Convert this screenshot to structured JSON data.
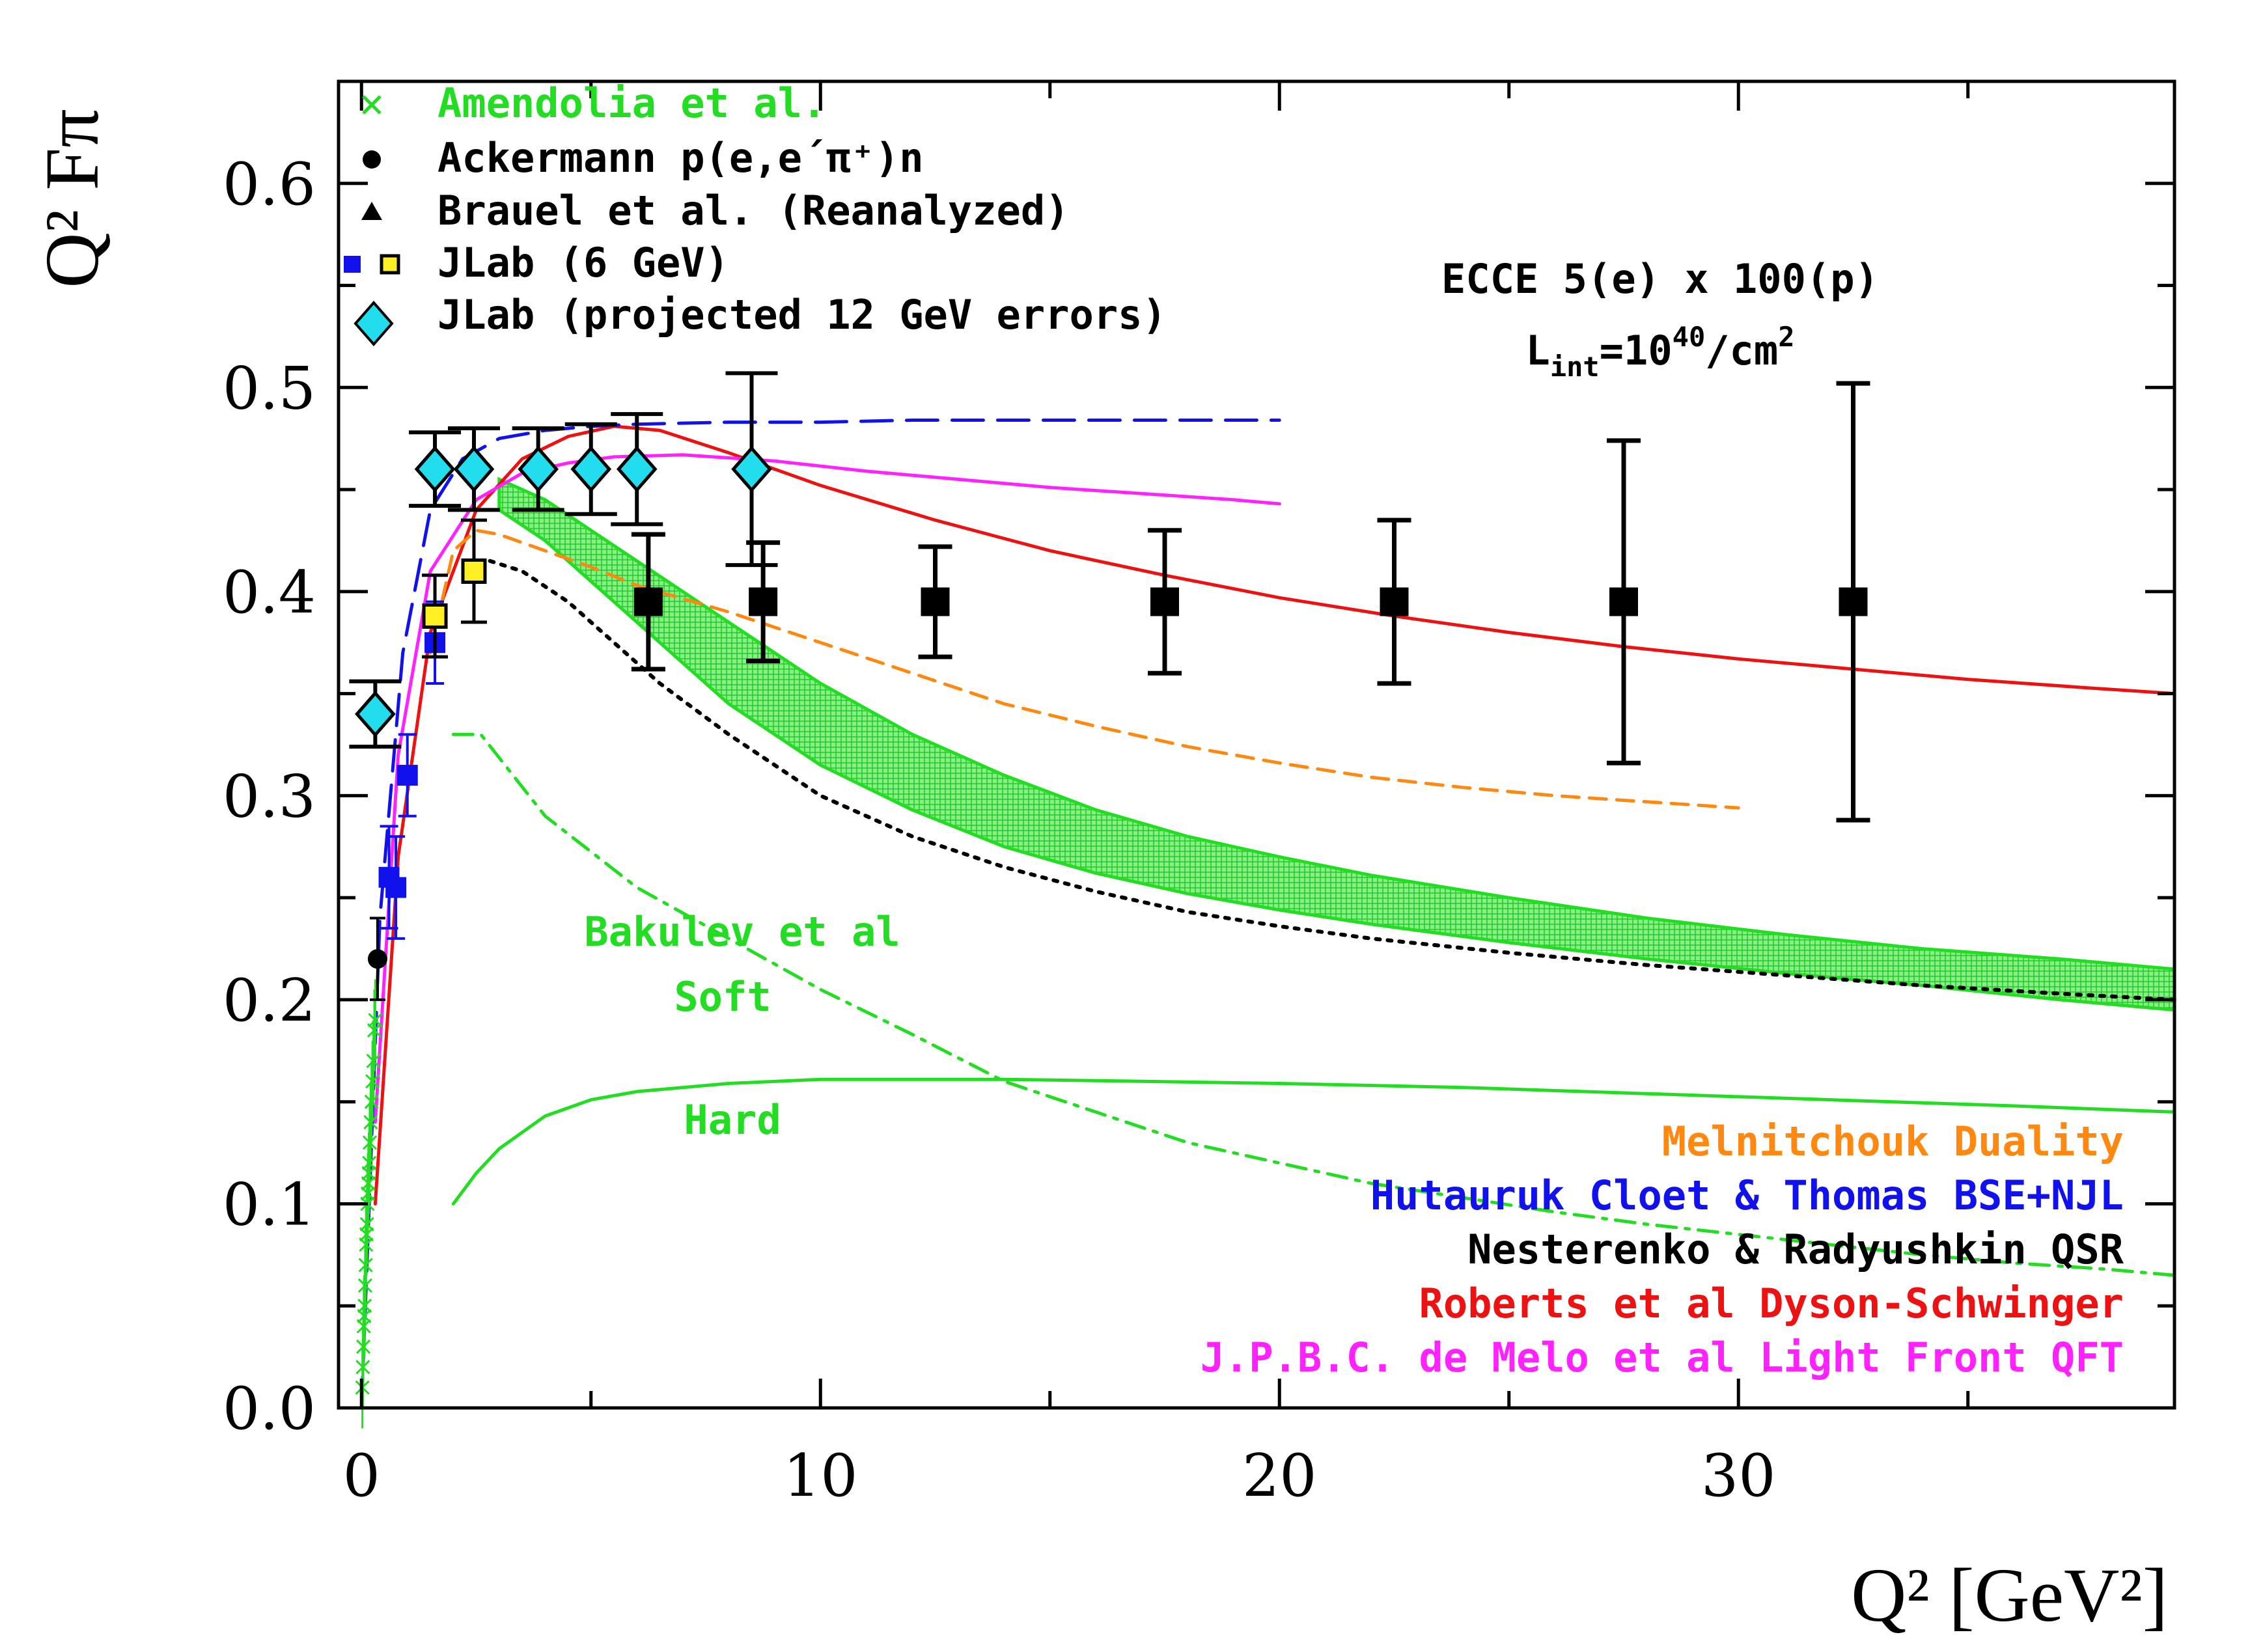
{
  "chart_data": {
    "type": "line",
    "title": "",
    "xlabel": "Q² [GeV²]",
    "ylabel": "Q² Fπ",
    "xlim": [
      -0.5,
      39.5
    ],
    "ylim": [
      0.0,
      0.65
    ],
    "x_ticks": [
      0,
      10,
      20,
      30
    ],
    "x_tick_labels": [
      "0",
      "10",
      "20",
      "30"
    ],
    "y_ticks": [
      0.0,
      0.1,
      0.2,
      0.3,
      0.4,
      0.5,
      0.6
    ],
    "y_tick_labels": [
      "0.0",
      "0.1",
      "0.2",
      "0.3",
      "0.4",
      "0.5",
      "0.6"
    ],
    "colors": {
      "green": "#22dd22",
      "blue": "#1111ee",
      "red": "#ee1111",
      "magenta": "#ff22ff",
      "orange": "#ff8811",
      "black": "#000000",
      "cyan": "#22ddee",
      "yellow": "#ffee22"
    },
    "annotation": {
      "line1": "ECCE 5(e) x 100(p)",
      "line2_main": "L",
      "line2_sub": "int",
      "line2_eq": "=10",
      "line2_sup": "40",
      "line2_unit": "/cm",
      "line2_sup2": "2"
    },
    "band_labels": {
      "bakulev": "Bakulev et al",
      "soft": "Soft",
      "hard": "Hard"
    },
    "legend_markers": [
      {
        "label": "Amendolia et al.",
        "marker": "x-icon"
      },
      {
        "label": "Ackermann p(e,e´π⁺)n",
        "marker": "circle-icon"
      },
      {
        "label": "Brauel et al. (Reanalyzed)",
        "marker": "triangle-icon"
      },
      {
        "label": "JLab (6 GeV)",
        "marker": "square-pair-icon"
      },
      {
        "label": "JLab (projected 12 GeV errors)",
        "marker": "diamond-icon"
      }
    ],
    "legend_models": [
      {
        "label": "Melnitchouk Duality",
        "color": "#ff8811"
      },
      {
        "label": "Hutauruk Cloet & Thomas BSE+NJL",
        "color": "#1111ee"
      },
      {
        "label": "Nesterenko & Radyushkin QSR",
        "color": "#000000"
      },
      {
        "label": "Roberts et al Dyson-Schwinger",
        "color": "#ee1111"
      },
      {
        "label": "J.P.B.C. de Melo et al Light Front QFT",
        "color": "#ff22ff"
      }
    ],
    "series": [
      {
        "name": "Roberts et al Dyson-Schwinger",
        "style": "solid",
        "color": "#ee1111",
        "x": [
          0.3,
          0.8,
          1.5,
          2.5,
          3.5,
          4.5,
          5.5,
          6.5,
          8,
          10,
          12.5,
          15,
          17.5,
          20,
          22.5,
          25,
          27.5,
          30,
          32.5,
          35,
          37.5,
          39.5
        ],
        "y": [
          0.1,
          0.27,
          0.38,
          0.44,
          0.465,
          0.476,
          0.481,
          0.479,
          0.468,
          0.452,
          0.435,
          0.42,
          0.408,
          0.397,
          0.388,
          0.38,
          0.373,
          0.367,
          0.362,
          0.357,
          0.353,
          0.35
        ]
      },
      {
        "name": "J.P.B.C. de Melo et al Light Front QFT",
        "style": "solid",
        "color": "#ff22ff",
        "x": [
          0.3,
          0.8,
          1.5,
          2.5,
          3.5,
          4.5,
          5.5,
          7,
          9,
          11,
          13,
          15,
          17,
          19,
          20
        ],
        "y": [
          0.14,
          0.32,
          0.41,
          0.445,
          0.458,
          0.463,
          0.466,
          0.467,
          0.464,
          0.459,
          0.455,
          0.451,
          0.448,
          0.445,
          0.443
        ]
      },
      {
        "name": "Hutauruk Cloet & Thomas BSE+NJL",
        "style": "longdash",
        "color": "#1111ee",
        "x": [
          0.0,
          0.4,
          0.9,
          1.5,
          2.2,
          3,
          4,
          5,
          6,
          8,
          10,
          12,
          14,
          16,
          18,
          20
        ],
        "y": [
          0.0,
          0.24,
          0.37,
          0.44,
          0.465,
          0.475,
          0.479,
          0.481,
          0.482,
          0.483,
          0.483,
          0.484,
          0.484,
          0.484,
          0.484,
          0.484
        ]
      },
      {
        "name": "Melnitchouk Duality",
        "style": "dash",
        "color": "#ff8811",
        "x": [
          1.5,
          2,
          2.5,
          3,
          4,
          5,
          6,
          8,
          10,
          12,
          14,
          16,
          18,
          20,
          22,
          24,
          26,
          28,
          30
        ],
        "y": [
          0.37,
          0.42,
          0.43,
          0.428,
          0.42,
          0.412,
          0.403,
          0.39,
          0.375,
          0.36,
          0.345,
          0.334,
          0.324,
          0.316,
          0.309,
          0.304,
          0.3,
          0.297,
          0.294
        ]
      },
      {
        "name": "Nesterenko & Radyushkin QSR",
        "style": "dot",
        "color": "#000000",
        "x": [
          2.8,
          3.5,
          4.5,
          5.5,
          6.5,
          8,
          10,
          12,
          14,
          16,
          18,
          20,
          22,
          25,
          28,
          31,
          34,
          37,
          39.5
        ],
        "y": [
          0.415,
          0.41,
          0.395,
          0.375,
          0.355,
          0.33,
          0.3,
          0.28,
          0.265,
          0.253,
          0.243,
          0.236,
          0.23,
          0.223,
          0.217,
          0.212,
          0.207,
          0.203,
          0.2
        ]
      },
      {
        "name": "Bakulev et al Soft",
        "style": "dashdot",
        "color": "#22dd22",
        "x": [
          2,
          2.6,
          4,
          6,
          8,
          10,
          12,
          14,
          16,
          18,
          20,
          22,
          24,
          26,
          28,
          30,
          32,
          34,
          36,
          38,
          39.5
        ],
        "y": [
          0.33,
          0.33,
          0.29,
          0.255,
          0.23,
          0.205,
          0.183,
          0.16,
          0.145,
          0.13,
          0.12,
          0.11,
          0.103,
          0.096,
          0.09,
          0.085,
          0.08,
          0.075,
          0.071,
          0.068,
          0.065
        ]
      },
      {
        "name": "Bakulev et al Hard",
        "style": "solid",
        "color": "#22dd22",
        "x": [
          2,
          2.5,
          3,
          4,
          5,
          6,
          8,
          10,
          12,
          14,
          17,
          20,
          24,
          28,
          32,
          36,
          39.5
        ],
        "y": [
          0.1,
          0.115,
          0.127,
          0.143,
          0.151,
          0.155,
          0.159,
          0.161,
          0.161,
          0.161,
          0.16,
          0.159,
          0.157,
          0.154,
          0.151,
          0.148,
          0.145
        ]
      },
      {
        "name": "Bakulev et al band upper",
        "style": "band",
        "color": "#22dd22",
        "x": [
          3,
          4,
          5,
          6,
          7,
          8,
          10,
          12,
          14,
          16,
          18,
          20,
          22,
          25,
          28,
          31,
          34,
          37,
          39.5
        ],
        "y": [
          0.455,
          0.445,
          0.43,
          0.415,
          0.4,
          0.385,
          0.355,
          0.33,
          0.31,
          0.293,
          0.28,
          0.27,
          0.261,
          0.25,
          0.24,
          0.232,
          0.225,
          0.22,
          0.215
        ]
      },
      {
        "name": "Bakulev et al band lower",
        "style": "band",
        "color": "#22dd22",
        "x": [
          3,
          4,
          5,
          6,
          7,
          8,
          10,
          12,
          14,
          16,
          18,
          20,
          22,
          25,
          28,
          31,
          34,
          37,
          39.5
        ],
        "y": [
          0.44,
          0.425,
          0.405,
          0.385,
          0.365,
          0.345,
          0.315,
          0.293,
          0.275,
          0.262,
          0.252,
          0.244,
          0.237,
          0.228,
          0.22,
          0.213,
          0.207,
          0.2,
          0.195
        ]
      }
    ],
    "points": {
      "amendolia": {
        "x": [
          0.02,
          0.03,
          0.04,
          0.05,
          0.06,
          0.07,
          0.08,
          0.09,
          0.1,
          0.11,
          0.12,
          0.13,
          0.14,
          0.15,
          0.16,
          0.17,
          0.18,
          0.2,
          0.22,
          0.24,
          0.26,
          0.28,
          0.3
        ],
        "y": [
          0.01,
          0.02,
          0.03,
          0.04,
          0.045,
          0.05,
          0.06,
          0.07,
          0.08,
          0.085,
          0.09,
          0.1,
          0.105,
          0.11,
          0.115,
          0.12,
          0.13,
          0.14,
          0.15,
          0.16,
          0.17,
          0.185,
          0.19
        ],
        "err": 0.02
      },
      "ackermann": {
        "x": [
          0.35
        ],
        "y": [
          0.22
        ],
        "err": [
          0.02
        ]
      },
      "jlab6_blue": {
        "x": [
          0.6,
          0.75,
          1.0,
          1.6
        ],
        "y": [
          0.26,
          0.255,
          0.31,
          0.375
        ],
        "err": [
          0.025,
          0.025,
          0.02,
          0.02
        ]
      },
      "jlab6_yellow": {
        "x": [
          1.6,
          2.45
        ],
        "y": [
          0.388,
          0.41
        ],
        "err": [
          0.02,
          0.025
        ]
      },
      "jlab12_diamonds": {
        "x": [
          0.3,
          1.6,
          2.45,
          3.85,
          5.0,
          6.0,
          8.5
        ],
        "y": [
          0.34,
          0.46,
          0.46,
          0.46,
          0.46,
          0.46,
          0.46
        ],
        "err": [
          0.016,
          0.018,
          0.02,
          0.02,
          0.022,
          0.027,
          0.047
        ]
      },
      "ecce_projection": {
        "x": [
          6.25,
          8.75,
          12.5,
          17.5,
          22.5,
          27.5,
          32.5
        ],
        "y": [
          0.395,
          0.395,
          0.395,
          0.395,
          0.395,
          0.395,
          0.395
        ],
        "err": [
          0.033,
          0.029,
          0.027,
          0.035,
          0.04,
          0.079,
          0.107
        ]
      }
    }
  }
}
